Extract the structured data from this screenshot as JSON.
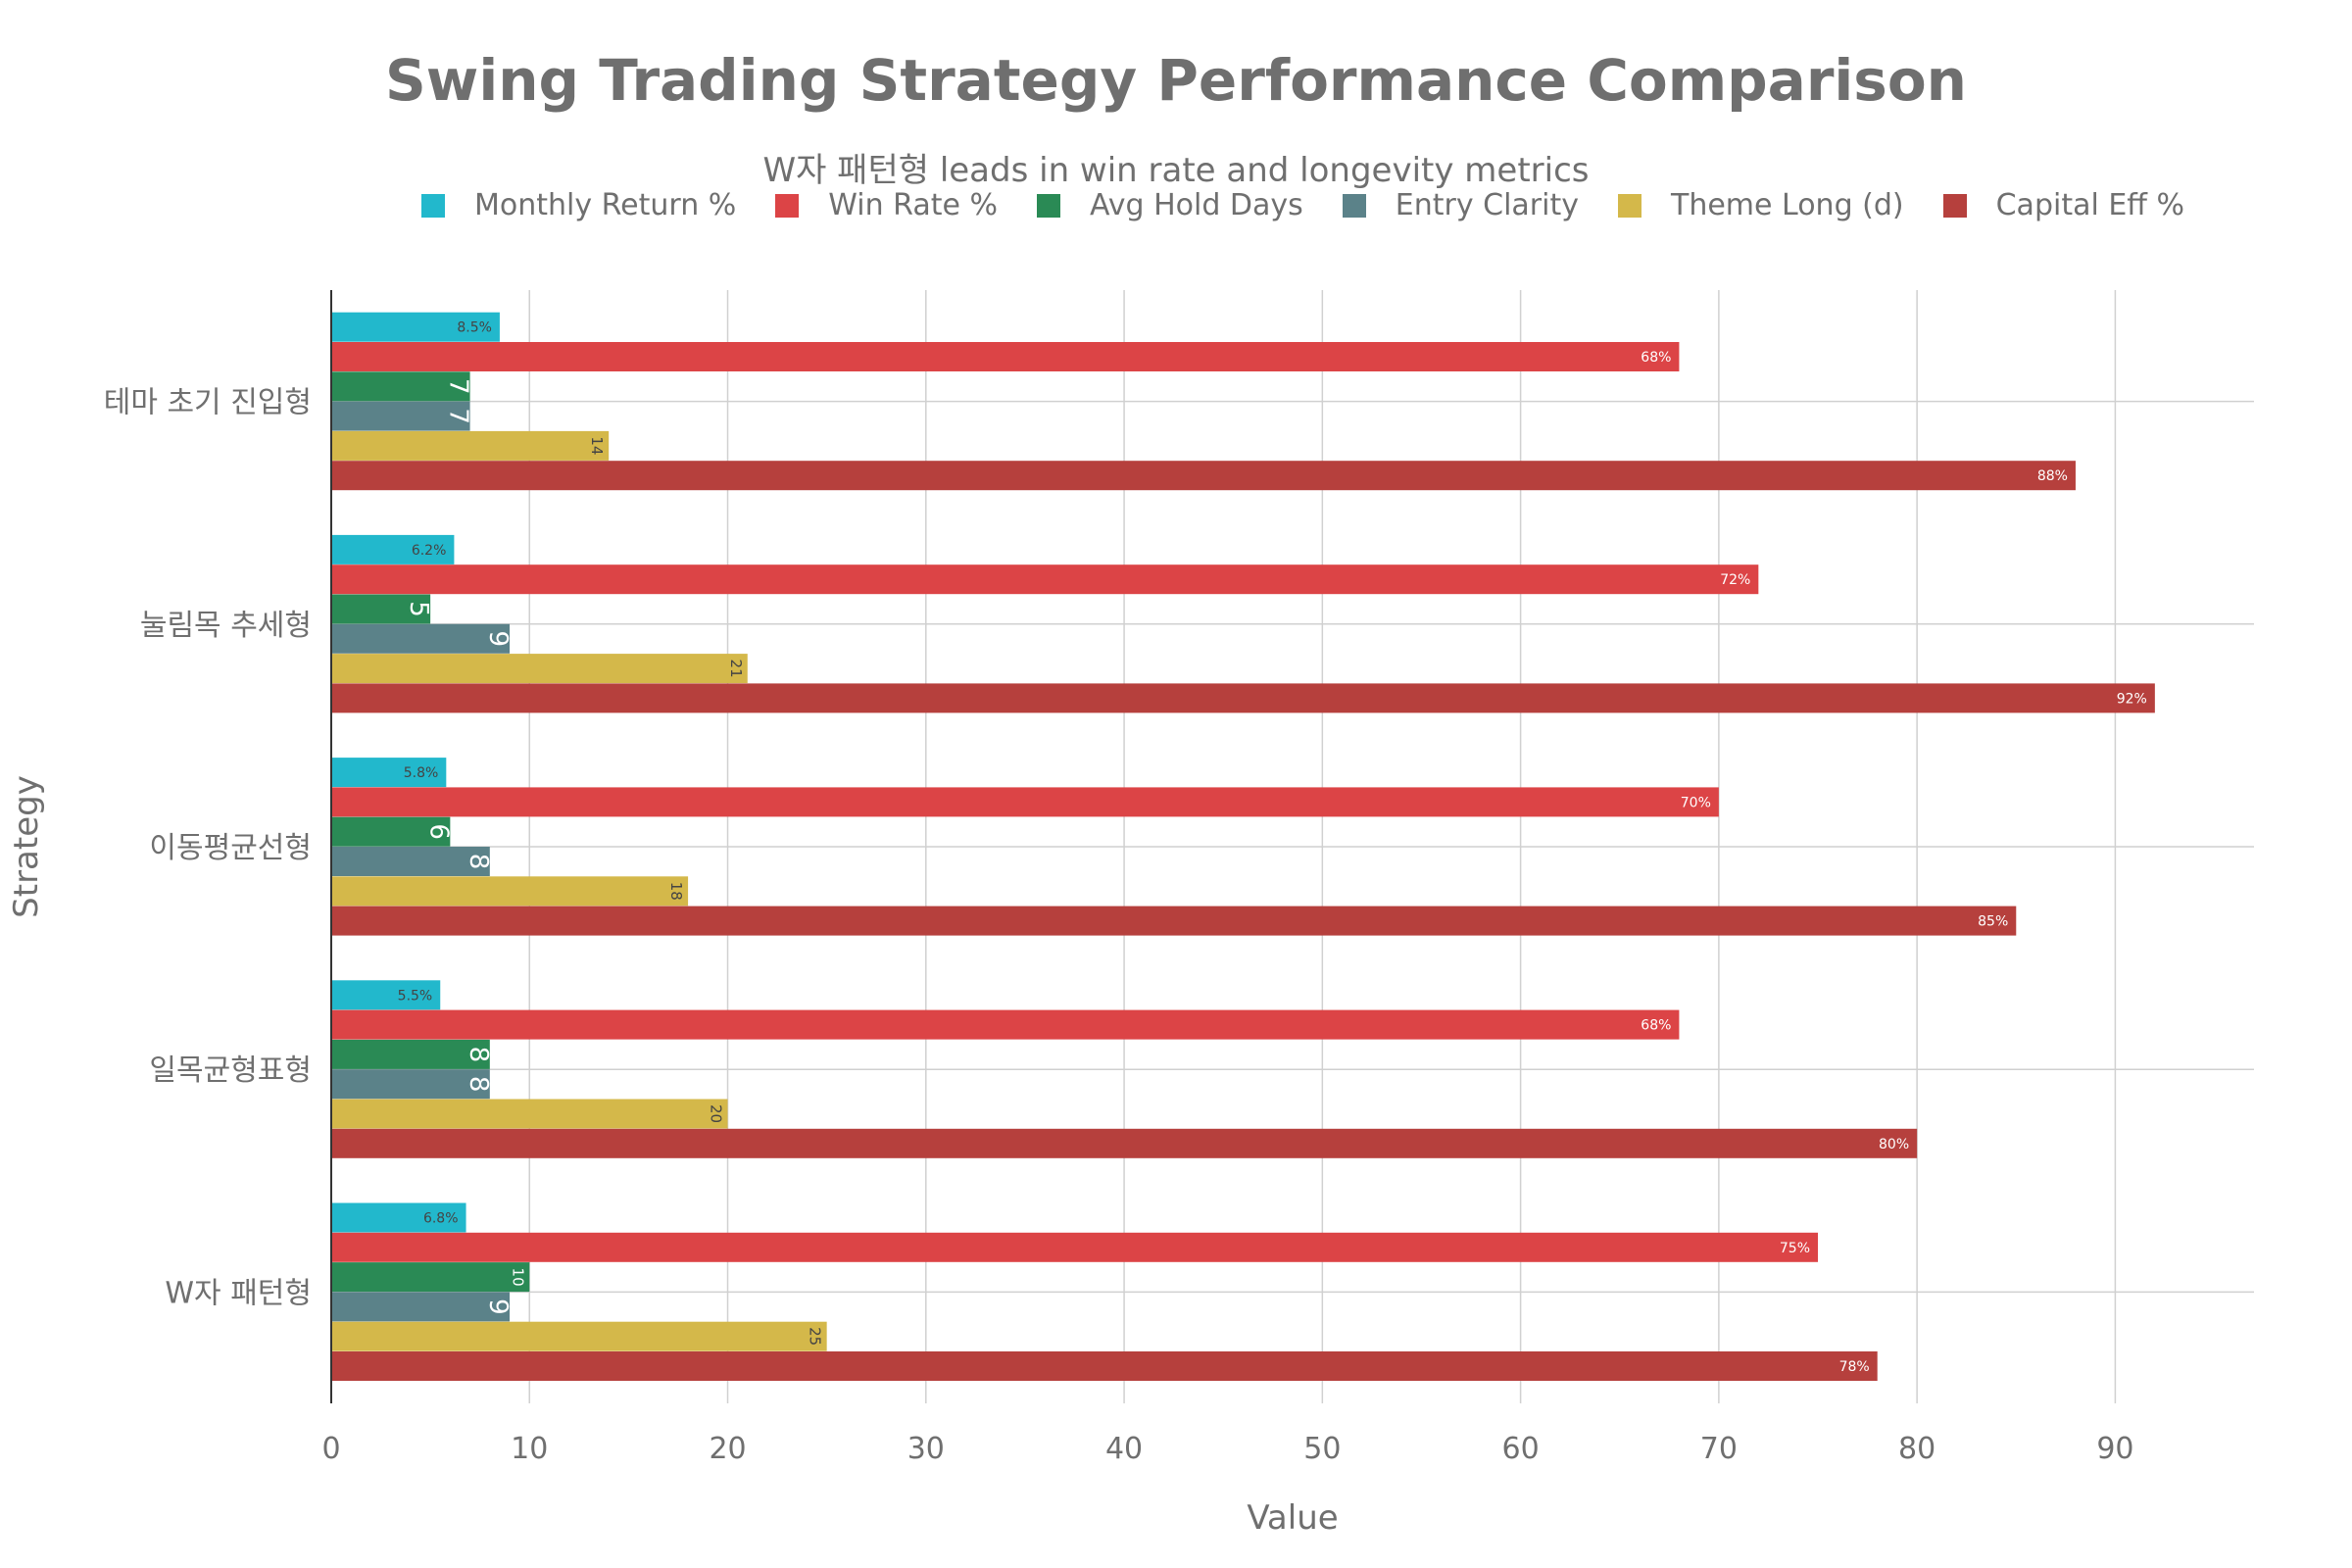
{
  "chart_data": {
    "type": "bar",
    "orientation": "horizontal",
    "title": "Swing Trading Strategy Performance Comparison",
    "subtitle": "W자 패턴형 leads in win rate and longevity metrics",
    "xlabel": "Value",
    "ylabel": "Strategy",
    "xlim": [
      0,
      97
    ],
    "xticks": [
      0,
      10,
      20,
      30,
      40,
      50,
      60,
      70,
      80,
      90
    ],
    "grid": true,
    "legend_position": "top",
    "categories": [
      "테마 초기 진입형",
      "눌림목 추세형",
      "이동평균선형",
      "일목균형표형",
      "W자 패턴형"
    ],
    "series": [
      {
        "name": "Monthly Return %",
        "color": "#22b8cc",
        "values": [
          8.5,
          6.2,
          5.8,
          5.5,
          6.8
        ],
        "labels": [
          "8.5%",
          "6.2%",
          "5.8%",
          "5.5%",
          "6.8%"
        ],
        "label_color": "#444444",
        "label_rotated": false
      },
      {
        "name": "Win Rate %",
        "color": "#dc4446",
        "values": [
          68,
          72,
          70,
          68,
          75
        ],
        "labels": [
          "68%",
          "72%",
          "70%",
          "68%",
          "75%"
        ],
        "label_color": "#ffffff",
        "label_rotated": false
      },
      {
        "name": "Avg Hold Days",
        "color": "#2a8a55",
        "values": [
          7,
          5,
          6,
          8,
          10
        ],
        "labels": [
          "7",
          "5",
          "6",
          "8",
          "10"
        ],
        "label_color": "#ffffff",
        "label_rotated": true
      },
      {
        "name": "Entry Clarity",
        "color": "#5b8289",
        "values": [
          7,
          9,
          8,
          8,
          9
        ],
        "labels": [
          "7",
          "9",
          "8",
          "8",
          "9"
        ],
        "label_color": "#ffffff",
        "label_rotated": true
      },
      {
        "name": "Theme Long (d)",
        "color": "#d4b84a",
        "values": [
          14,
          21,
          18,
          20,
          25
        ],
        "labels": [
          "14",
          "21",
          "18",
          "20",
          "25"
        ],
        "label_color": "#444444",
        "label_rotated": true
      },
      {
        "name": "Capital Eff %",
        "color": "#b6403d",
        "values": [
          88,
          92,
          85,
          80,
          78
        ],
        "labels": [
          "88%",
          "92%",
          "85%",
          "80%",
          "78%"
        ],
        "label_color": "#ffffff",
        "label_rotated": false
      }
    ]
  }
}
